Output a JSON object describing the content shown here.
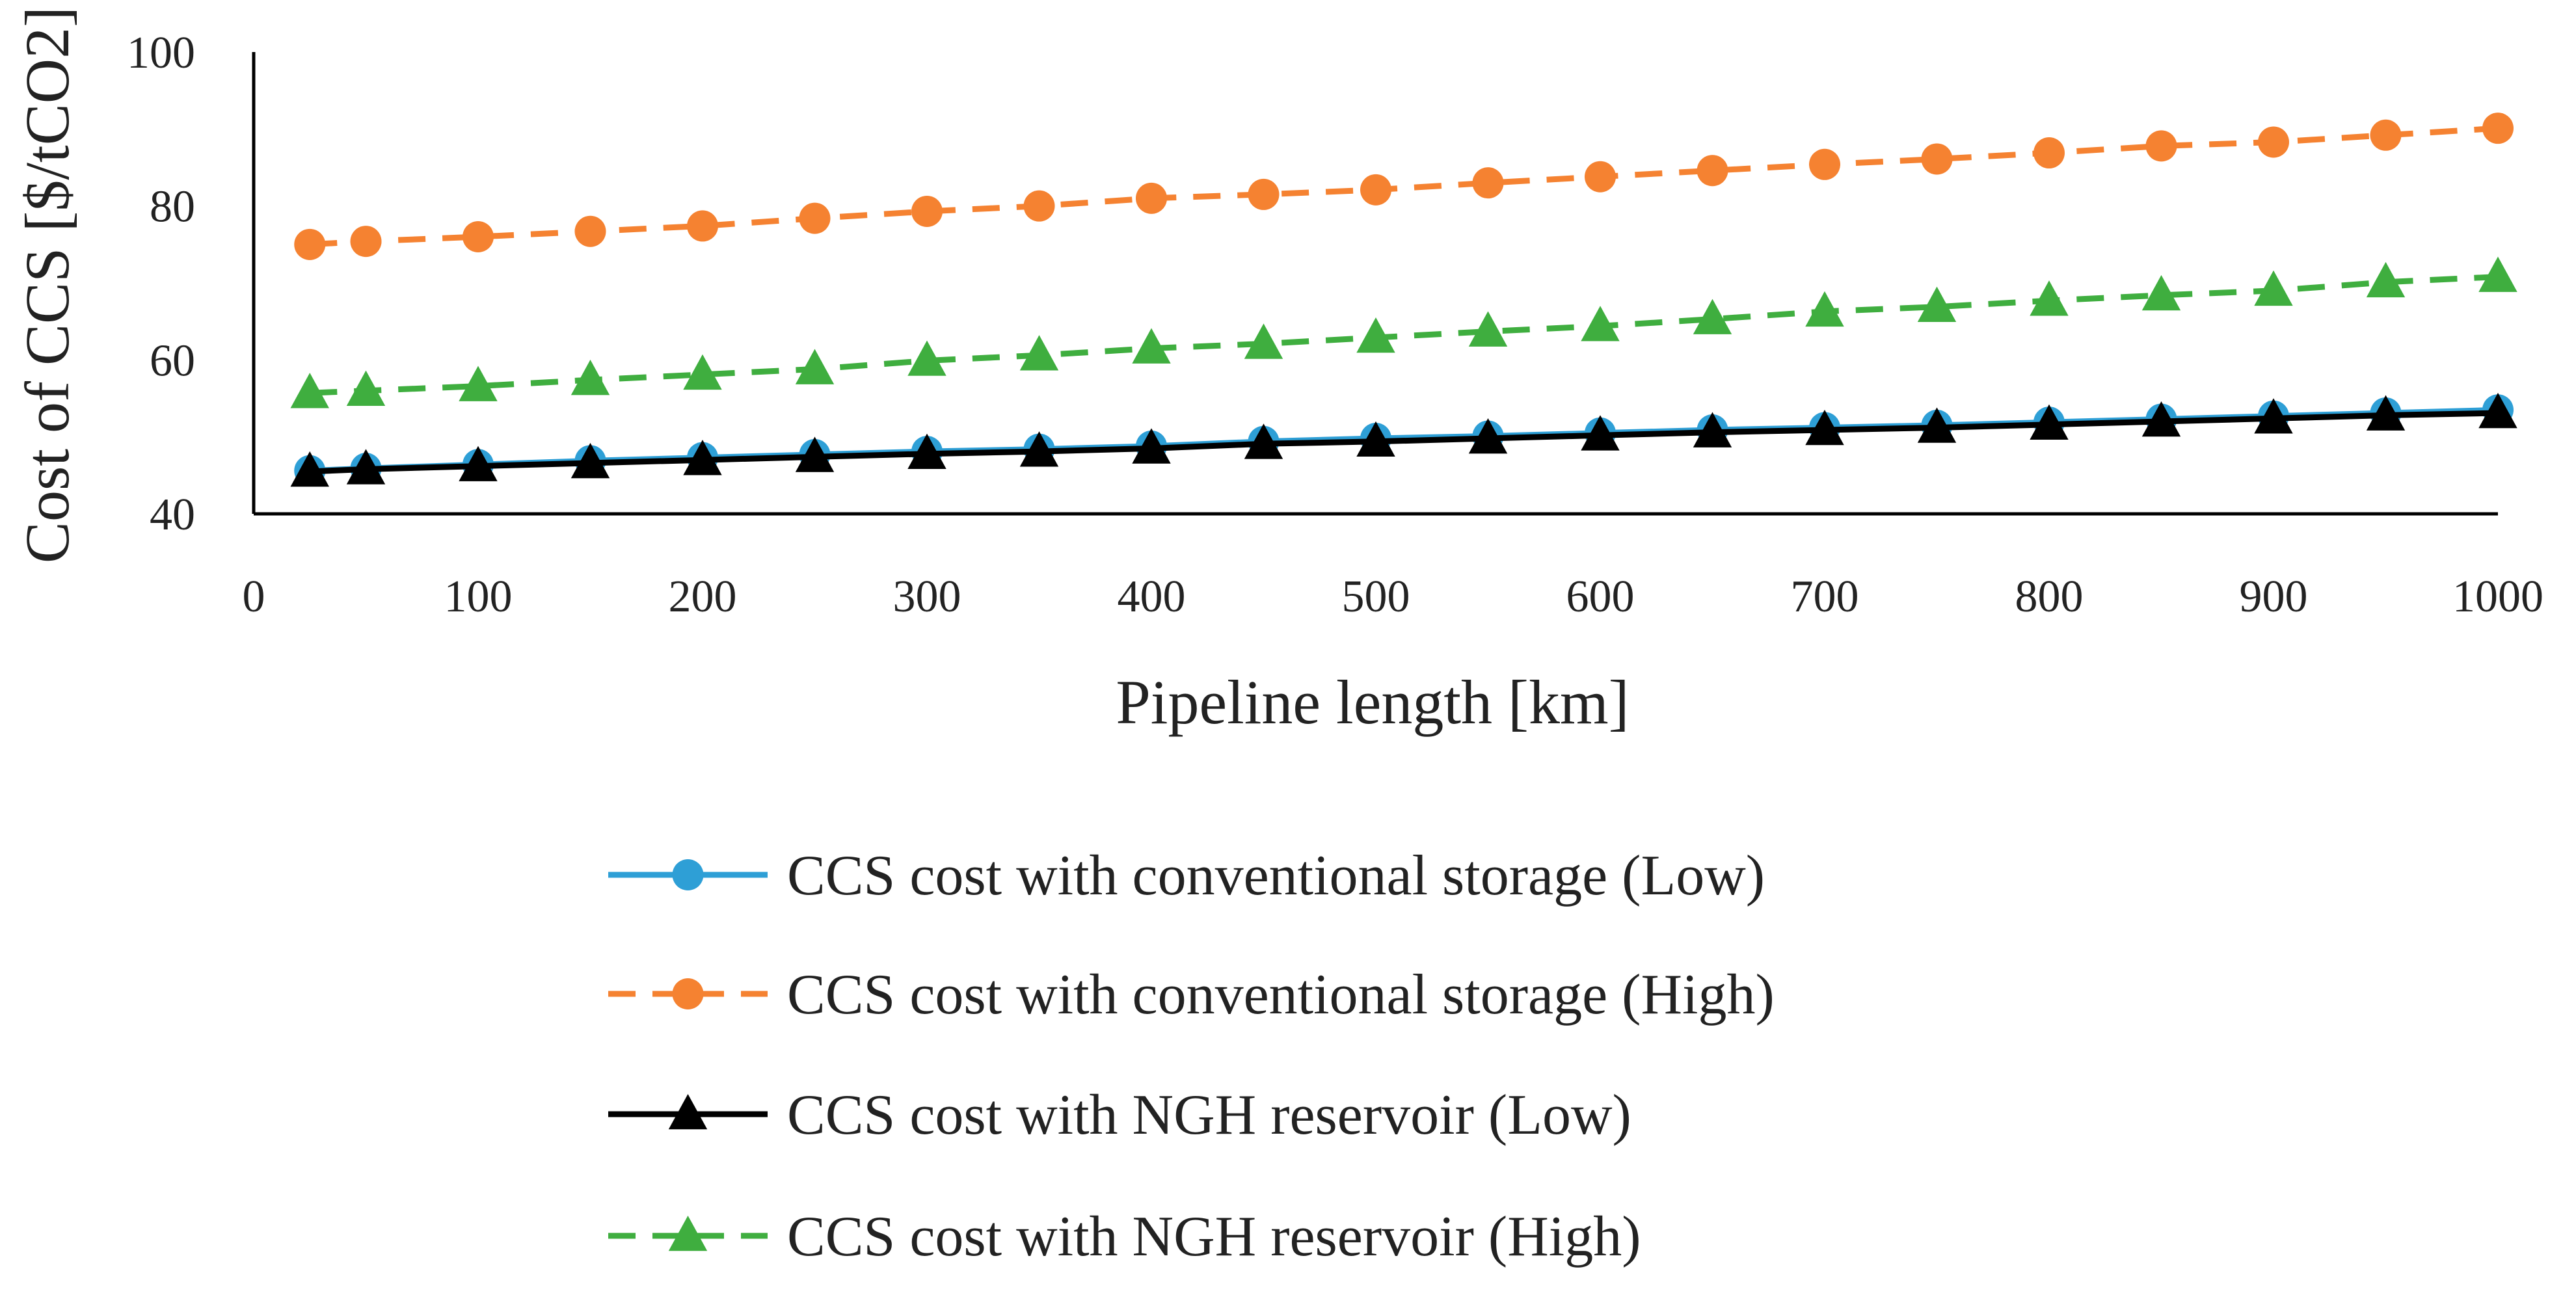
{
  "chart_data": {
    "type": "line",
    "title": "",
    "xlabel": "Pipeline length [km]",
    "ylabel": "Cost of CCS [$/tCO2]",
    "xlim": [
      0,
      1000
    ],
    "ylim": [
      40,
      100
    ],
    "xticks": [
      0,
      100,
      200,
      300,
      400,
      500,
      600,
      700,
      800,
      900,
      1000
    ],
    "yticks": [
      40,
      60,
      80,
      100
    ],
    "grid": false,
    "legend_position": "bottom",
    "x": [
      25,
      50,
      100,
      150,
      200,
      250,
      300,
      350,
      400,
      450,
      500,
      550,
      600,
      650,
      700,
      750,
      800,
      850,
      900,
      950,
      1000
    ],
    "series": [
      {
        "name": "CCS cost with conventional storage (Low)",
        "color": "#2E9FD6",
        "dash": "solid",
        "marker": "circle",
        "values": [
          45.6,
          45.9,
          46.4,
          46.9,
          47.3,
          47.7,
          48.1,
          48.4,
          48.8,
          49.4,
          49.8,
          50.1,
          50.5,
          50.9,
          51.2,
          51.5,
          51.9,
          52.3,
          52.7,
          53.1,
          53.5
        ]
      },
      {
        "name": "CCS cost with conventional storage (High)",
        "color": "#F58231",
        "dash": "dashed",
        "marker": "circle",
        "values": [
          75.0,
          75.4,
          76.0,
          76.7,
          77.4,
          78.4,
          79.3,
          80.0,
          81.0,
          81.5,
          82.1,
          83.0,
          83.8,
          84.6,
          85.4,
          86.1,
          86.9,
          87.8,
          88.3,
          89.2,
          90.1
        ]
      },
      {
        "name": "CCS cost with NGH reservoir (Low)",
        "color": "#000000",
        "dash": "solid",
        "marker": "triangle",
        "values": [
          45.5,
          45.8,
          46.2,
          46.6,
          47.0,
          47.4,
          47.8,
          48.1,
          48.5,
          49.1,
          49.4,
          49.8,
          50.2,
          50.6,
          50.9,
          51.2,
          51.6,
          52.0,
          52.4,
          52.8,
          53.1
        ]
      },
      {
        "name": "CCS cost with NGH reservoir (High)",
        "color": "#3FAE3F",
        "dash": "dashed",
        "marker": "triangle",
        "values": [
          55.7,
          56.0,
          56.6,
          57.4,
          58.1,
          58.8,
          59.9,
          60.6,
          61.5,
          62.1,
          62.9,
          63.7,
          64.4,
          65.3,
          66.3,
          66.9,
          67.7,
          68.4,
          69.0,
          70.1,
          70.8
        ]
      }
    ]
  }
}
